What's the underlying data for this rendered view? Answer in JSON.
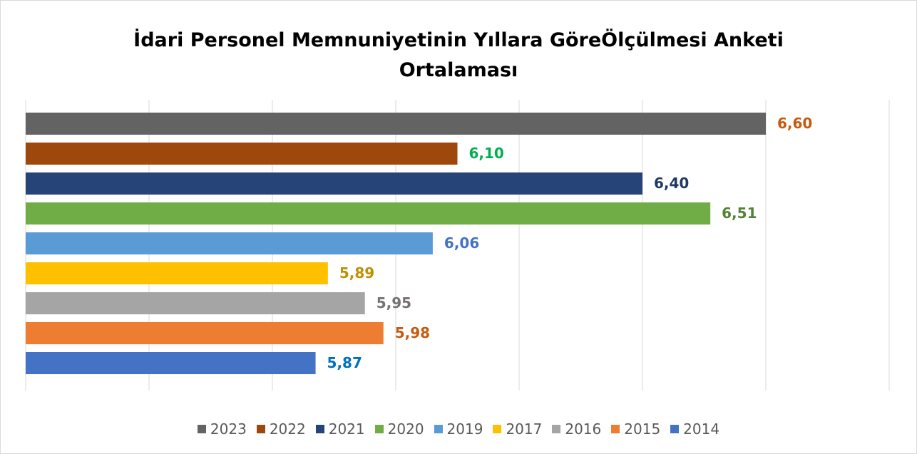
{
  "chart_data": {
    "type": "bar",
    "orientation": "horizontal",
    "title": "İdari Personel Memnuniyetinin Yıllara GöreÖlçülmesi Anketi Ortalaması",
    "xlim": [
      5.4,
      6.8
    ],
    "xticks": [
      5.4,
      5.6,
      5.8,
      6.0,
      6.2,
      6.4,
      6.6,
      6.8
    ],
    "grid": true,
    "legend": "bottom",
    "series": [
      {
        "name": "2023",
        "color": "#636363",
        "label_color": "#c55a11",
        "values": [
          6.6
        ],
        "value_labels": [
          "6,60"
        ]
      },
      {
        "name": "2022",
        "color": "#9e480e",
        "label_color": "#00b050",
        "values": [
          6.1
        ],
        "value_labels": [
          "6,10"
        ]
      },
      {
        "name": "2021",
        "color": "#264478",
        "label_color": "#1f3864",
        "values": [
          6.4
        ],
        "value_labels": [
          "6,40"
        ]
      },
      {
        "name": "2020",
        "color": "#70ad47",
        "label_color": "#548235",
        "values": [
          6.51
        ],
        "value_labels": [
          "6,51"
        ]
      },
      {
        "name": "2019",
        "color": "#5b9bd5",
        "label_color": "#4472c4",
        "values": [
          6.06
        ],
        "value_labels": [
          "6,06"
        ]
      },
      {
        "name": "2017",
        "color": "#ffc000",
        "label_color": "#bf9000",
        "values": [
          5.89
        ],
        "value_labels": [
          "5,89"
        ]
      },
      {
        "name": "2016",
        "color": "#a5a5a5",
        "label_color": "#767171",
        "values": [
          5.95
        ],
        "value_labels": [
          "5,95"
        ]
      },
      {
        "name": "2015",
        "color": "#ed7d31",
        "label_color": "#c55a11",
        "values": [
          5.98
        ],
        "value_labels": [
          "5,98"
        ]
      },
      {
        "name": "2014",
        "color": "#4472c4",
        "label_color": "#0070c0",
        "values": [
          5.87
        ],
        "value_labels": [
          "5,87"
        ]
      }
    ]
  }
}
